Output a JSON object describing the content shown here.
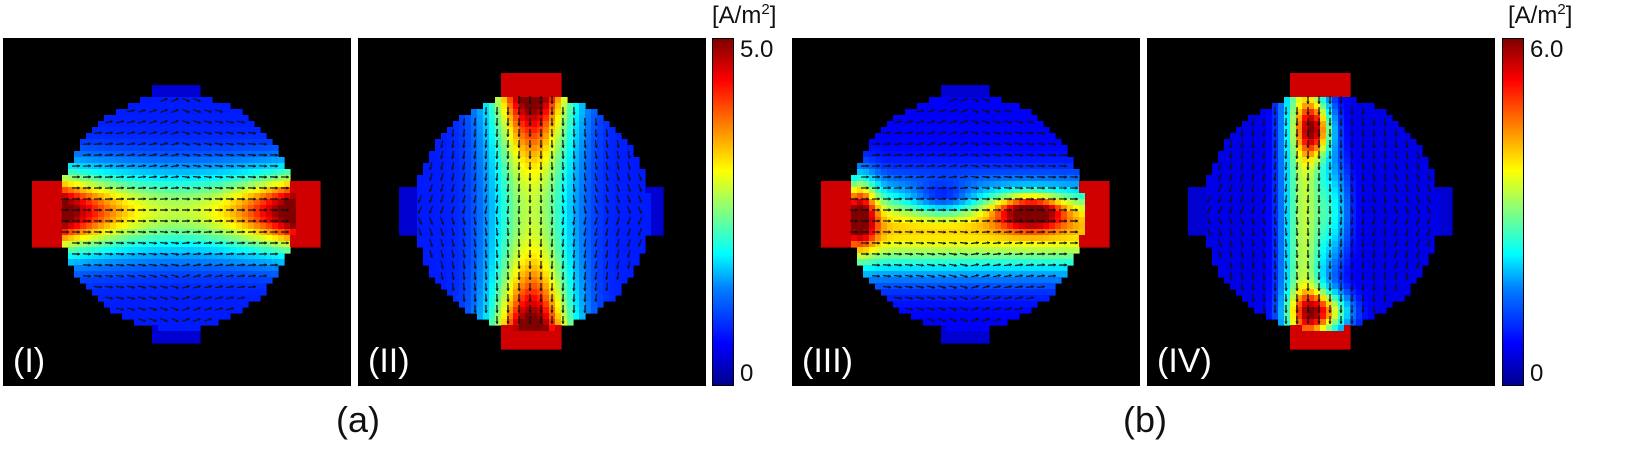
{
  "figure_a": {
    "caption": "(a)",
    "panels": [
      {
        "label": "(I)",
        "pattern": "horizontal",
        "electrode_axis": "left-right"
      },
      {
        "label": "(II)",
        "pattern": "vertical",
        "electrode_axis": "top-bottom"
      }
    ],
    "colorbar": {
      "unit_prefix": "[A/m",
      "unit_exp": "2",
      "unit_suffix": "]",
      "max": "5.0",
      "min": "0"
    }
  },
  "figure_b": {
    "caption": "(b)",
    "panels": [
      {
        "label": "(III)",
        "pattern": "horizontal-asym",
        "electrode_axis": "left-right"
      },
      {
        "label": "(IV)",
        "pattern": "vertical-asym",
        "electrode_axis": "top-bottom"
      }
    ],
    "colorbar": {
      "unit_prefix": "[A/m",
      "unit_exp": "2",
      "unit_suffix": "]",
      "max": "6.0",
      "min": "0"
    }
  },
  "colormap": "jet",
  "colors": {
    "background": "#000000",
    "arrow": "#111111"
  }
}
